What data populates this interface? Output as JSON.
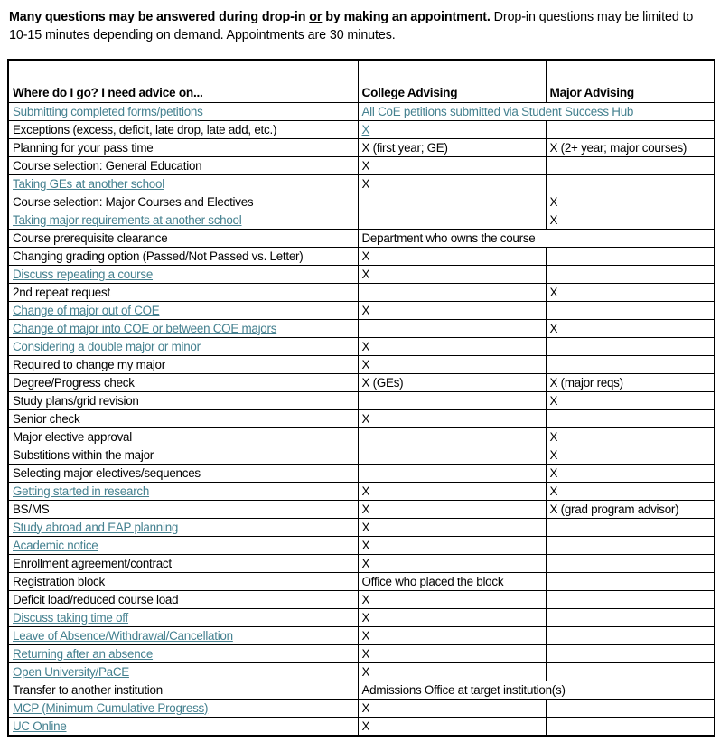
{
  "intro": {
    "bold_lead": "Many questions may be answered during drop-in ",
    "bold_or": "or",
    "bold_tail": " by making an appointment.",
    "regular": " Drop-in questions may be limited to 10-15 minutes depending on demand. Appointments are 30 minutes."
  },
  "table": {
    "link_color": "#44808F",
    "headers": [
      "Where do I go? I need advice on...",
      "College Advising",
      "Major Advising"
    ],
    "rows": [
      {
        "q": "Submitting completed forms/petitions",
        "q_link": true,
        "college": "All CoE petitions submitted via Student Success Hub",
        "college_link": true,
        "span": true,
        "major": ""
      },
      {
        "q": "Exceptions (excess, deficit, late drop, late add, etc.)",
        "q_link": false,
        "college": "X",
        "college_link": true,
        "span": false,
        "major": ""
      },
      {
        "q": "Planning for your pass time",
        "q_link": false,
        "college": "X (first year; GE)",
        "college_link": false,
        "span": false,
        "major": "X (2+ year; major courses)"
      },
      {
        "q": "Course selection: General Education",
        "q_link": false,
        "college": "X",
        "college_link": false,
        "span": false,
        "major": ""
      },
      {
        "q": "Taking GEs at another school",
        "q_link": true,
        "college": "X",
        "college_link": false,
        "span": false,
        "major": ""
      },
      {
        "q": "Course selection: Major Courses and Electives",
        "q_link": false,
        "college": "",
        "college_link": false,
        "span": false,
        "major": "X"
      },
      {
        "q": "Taking major requirements at another school",
        "q_link": true,
        "college": "",
        "college_link": false,
        "span": false,
        "major": "X"
      },
      {
        "q": "Course prerequisite clearance",
        "q_link": false,
        "college": "Department who owns the course",
        "college_link": false,
        "span": true,
        "major": ""
      },
      {
        "q": "Changing grading option (Passed/Not Passed vs. Letter)",
        "q_link": false,
        "college": "X",
        "college_link": false,
        "span": false,
        "major": ""
      },
      {
        "q": "Discuss repeating a course",
        "q_link": true,
        "college": "X",
        "college_link": false,
        "span": false,
        "major": ""
      },
      {
        "q": "2nd repeat request",
        "q_link": false,
        "college": "",
        "college_link": false,
        "span": false,
        "major": "X"
      },
      {
        "q": "Change of major out of COE",
        "q_link": true,
        "college": "X",
        "college_link": false,
        "span": false,
        "major": ""
      },
      {
        "q": "Change of major into COE or between COE majors",
        "q_link": true,
        "college": "",
        "college_link": false,
        "span": false,
        "major": "X"
      },
      {
        "q": "Considering a double major or minor",
        "q_link": true,
        "college": "X",
        "college_link": false,
        "span": false,
        "major": ""
      },
      {
        "q": "Required to change my major",
        "q_link": false,
        "college": "X",
        "college_link": false,
        "span": false,
        "major": ""
      },
      {
        "q": "Degree/Progress check",
        "q_link": false,
        "college": "X (GEs)",
        "college_link": false,
        "span": false,
        "major": "X (major reqs)"
      },
      {
        "q": "Study plans/grid revision",
        "q_link": false,
        "college": "",
        "college_link": false,
        "span": false,
        "major": "X"
      },
      {
        "q": "Senior check",
        "q_link": false,
        "college": "X",
        "college_link": false,
        "span": false,
        "major": ""
      },
      {
        "q": "Major elective approval",
        "q_link": false,
        "college": "",
        "college_link": false,
        "span": false,
        "major": "X"
      },
      {
        "q": "Substitions within the major",
        "q_link": false,
        "college": "",
        "college_link": false,
        "span": false,
        "major": "X"
      },
      {
        "q": "Selecting major electives/sequences",
        "q_link": false,
        "college": "",
        "college_link": false,
        "span": false,
        "major": "X"
      },
      {
        "q": "Getting started in research",
        "q_link": true,
        "college": "X",
        "college_link": false,
        "span": false,
        "major": "X"
      },
      {
        "q": "BS/MS",
        "q_link": false,
        "college": "X",
        "college_link": false,
        "span": false,
        "major": "X (grad program advisor)"
      },
      {
        "q": "Study abroad and EAP planning",
        "q_link": true,
        "college": "X",
        "college_link": false,
        "span": false,
        "major": ""
      },
      {
        "q": "Academic notice",
        "q_link": true,
        "college": "X",
        "college_link": false,
        "span": false,
        "major": ""
      },
      {
        "q": "Enrollment agreement/contract",
        "q_link": false,
        "college": "X",
        "college_link": false,
        "span": false,
        "major": ""
      },
      {
        "q": "Registration block",
        "q_link": false,
        "college": "Office who placed the block",
        "college_link": false,
        "span": false,
        "major": ""
      },
      {
        "q": "Deficit load/reduced course load",
        "q_link": false,
        "college": "X",
        "college_link": false,
        "span": false,
        "major": ""
      },
      {
        "q": "Discuss taking time off",
        "q_link": true,
        "college": "X",
        "college_link": false,
        "span": false,
        "major": ""
      },
      {
        "q": "Leave of Absence/Withdrawal/Cancellation",
        "q_link": true,
        "college": "X",
        "college_link": false,
        "span": false,
        "major": ""
      },
      {
        "q": "Returning after an absence",
        "q_link": true,
        "college": "X",
        "college_link": false,
        "span": false,
        "major": ""
      },
      {
        "q": "Open University/PaCE",
        "q_link": true,
        "college": "X",
        "college_link": false,
        "span": false,
        "major": ""
      },
      {
        "q": "Transfer to another institution",
        "q_link": false,
        "college": "Admissions Office at target institution(s)",
        "college_link": false,
        "span": true,
        "major": ""
      },
      {
        "q": "MCP (Minimum Cumulative Progress)",
        "q_link": true,
        "college": "X",
        "college_link": false,
        "span": false,
        "major": ""
      },
      {
        "q": "UC Online",
        "q_link": true,
        "college": "X",
        "college_link": false,
        "span": false,
        "major": ""
      }
    ]
  }
}
